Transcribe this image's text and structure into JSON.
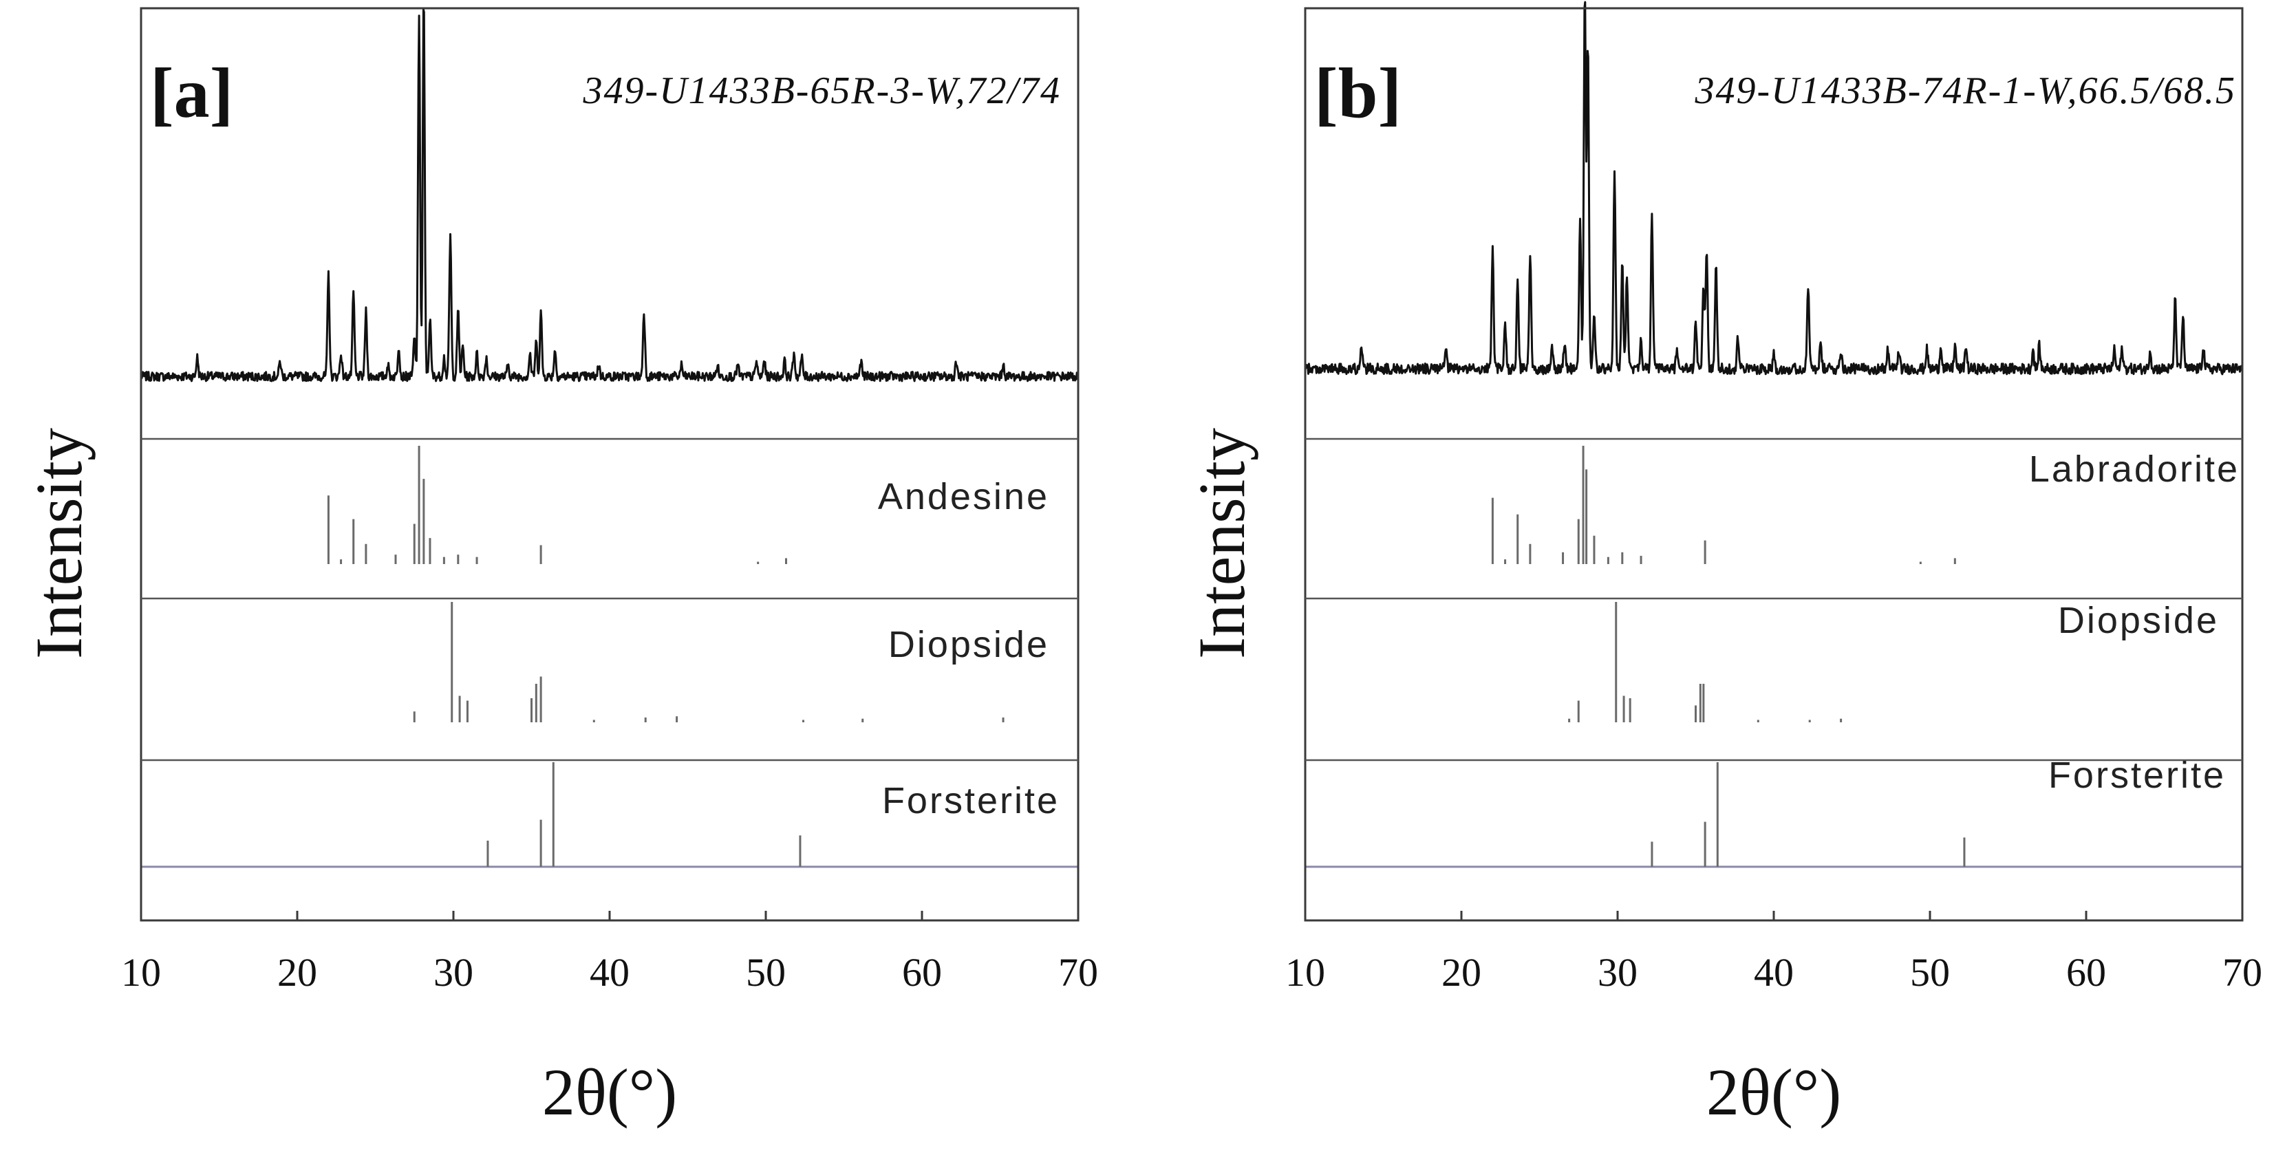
{
  "chart_data": [
    {
      "type": "line",
      "panel_label": "[a]",
      "sample_label": "349-U1433B-65R-3-W,72/74",
      "xlabel": "2θ(°)",
      "ylabel": "Intensity",
      "xlim": [
        10,
        70
      ],
      "x_ticks": [
        "10",
        "20",
        "30",
        "40",
        "50",
        "60",
        "70"
      ],
      "grid": false,
      "pattern": {
        "name": "XRD pattern",
        "baseline": 0.05,
        "noise": 0.012,
        "peaks": [
          [
            13.6,
            0.05
          ],
          [
            18.9,
            0.04
          ],
          [
            22.0,
            0.27
          ],
          [
            22.8,
            0.06
          ],
          [
            23.6,
            0.22
          ],
          [
            24.4,
            0.17
          ],
          [
            25.8,
            0.03
          ],
          [
            26.5,
            0.08
          ],
          [
            27.5,
            0.1
          ],
          [
            27.8,
            0.95
          ],
          [
            28.1,
            1.0
          ],
          [
            28.5,
            0.15
          ],
          [
            29.4,
            0.05
          ],
          [
            29.8,
            0.37
          ],
          [
            30.3,
            0.17
          ],
          [
            30.6,
            0.08
          ],
          [
            31.5,
            0.06
          ],
          [
            32.1,
            0.05
          ],
          [
            33.5,
            0.03
          ],
          [
            34.9,
            0.06
          ],
          [
            35.3,
            0.09
          ],
          [
            35.6,
            0.17
          ],
          [
            36.5,
            0.07
          ],
          [
            39.3,
            0.03
          ],
          [
            42.2,
            0.17
          ],
          [
            44.6,
            0.03
          ],
          [
            46.9,
            0.03
          ],
          [
            48.2,
            0.03
          ],
          [
            49.4,
            0.04
          ],
          [
            49.9,
            0.04
          ],
          [
            51.2,
            0.04
          ],
          [
            51.8,
            0.06
          ],
          [
            52.3,
            0.05
          ],
          [
            56.1,
            0.04
          ],
          [
            62.2,
            0.04
          ],
          [
            65.2,
            0.03
          ]
        ]
      },
      "references": [
        {
          "name": "Andesine",
          "sticks": [
            [
              22.0,
              0.58
            ],
            [
              22.8,
              0.04
            ],
            [
              23.6,
              0.38
            ],
            [
              24.4,
              0.17
            ],
            [
              26.3,
              0.08
            ],
            [
              27.5,
              0.34
            ],
            [
              27.8,
              1.0
            ],
            [
              28.1,
              0.72
            ],
            [
              28.5,
              0.22
            ],
            [
              29.4,
              0.06
            ],
            [
              30.3,
              0.08
            ],
            [
              31.5,
              0.06
            ],
            [
              35.6,
              0.16
            ],
            [
              49.5,
              0.02
            ],
            [
              51.3,
              0.05
            ]
          ]
        },
        {
          "name": "Diopside",
          "sticks": [
            [
              27.5,
              0.09
            ],
            [
              29.9,
              1.0
            ],
            [
              30.4,
              0.22
            ],
            [
              30.9,
              0.18
            ],
            [
              35.0,
              0.2
            ],
            [
              35.3,
              0.32
            ],
            [
              35.6,
              0.38
            ],
            [
              39.0,
              0.02
            ],
            [
              42.3,
              0.04
            ],
            [
              44.3,
              0.05
            ],
            [
              52.4,
              0.02
            ],
            [
              56.2,
              0.03
            ],
            [
              65.2,
              0.04
            ]
          ]
        },
        {
          "name": "Forsterite",
          "sticks": [
            [
              32.2,
              0.25
            ],
            [
              35.6,
              0.45
            ],
            [
              36.4,
              1.0
            ],
            [
              52.2,
              0.3
            ]
          ]
        }
      ]
    },
    {
      "type": "line",
      "panel_label": "[b]",
      "sample_label": "349-U1433B-74R-1-W,66.5/68.5",
      "xlabel": "2θ(°)",
      "ylabel": "Intensity",
      "xlim": [
        10,
        70
      ],
      "x_ticks": [
        "10",
        "20",
        "30",
        "40",
        "50",
        "60",
        "70"
      ],
      "grid": false,
      "pattern": {
        "name": "XRD pattern",
        "baseline": 0.07,
        "noise": 0.014,
        "peaks": [
          [
            13.6,
            0.05
          ],
          [
            19.0,
            0.05
          ],
          [
            22.0,
            0.32
          ],
          [
            22.8,
            0.12
          ],
          [
            23.6,
            0.22
          ],
          [
            24.4,
            0.3
          ],
          [
            25.8,
            0.06
          ],
          [
            26.6,
            0.07
          ],
          [
            27.6,
            0.4
          ],
          [
            27.9,
            1.0
          ],
          [
            28.1,
            0.85
          ],
          [
            28.5,
            0.14
          ],
          [
            29.8,
            0.52
          ],
          [
            30.3,
            0.28
          ],
          [
            30.6,
            0.25
          ],
          [
            31.5,
            0.08
          ],
          [
            32.2,
            0.4
          ],
          [
            33.8,
            0.05
          ],
          [
            35.0,
            0.12
          ],
          [
            35.5,
            0.22
          ],
          [
            35.7,
            0.3
          ],
          [
            36.3,
            0.27
          ],
          [
            37.7,
            0.08
          ],
          [
            40.0,
            0.04
          ],
          [
            42.2,
            0.22
          ],
          [
            43.0,
            0.06
          ],
          [
            44.3,
            0.05
          ],
          [
            47.3,
            0.05
          ],
          [
            48.0,
            0.05
          ],
          [
            49.8,
            0.05
          ],
          [
            50.7,
            0.06
          ],
          [
            51.6,
            0.06
          ],
          [
            52.3,
            0.06
          ],
          [
            56.6,
            0.05
          ],
          [
            57.0,
            0.06
          ],
          [
            61.8,
            0.05
          ],
          [
            62.3,
            0.05
          ],
          [
            64.1,
            0.05
          ],
          [
            65.7,
            0.18
          ],
          [
            66.2,
            0.14
          ],
          [
            67.5,
            0.06
          ]
        ]
      },
      "references": [
        {
          "name": "Labradorite",
          "sticks": [
            [
              22.0,
              0.56
            ],
            [
              22.8,
              0.04
            ],
            [
              23.6,
              0.42
            ],
            [
              24.4,
              0.17
            ],
            [
              26.5,
              0.1
            ],
            [
              27.5,
              0.38
            ],
            [
              27.8,
              1.0
            ],
            [
              28.0,
              0.8
            ],
            [
              28.5,
              0.24
            ],
            [
              29.4,
              0.06
            ],
            [
              30.3,
              0.1
            ],
            [
              31.5,
              0.07
            ],
            [
              35.6,
              0.2
            ],
            [
              49.4,
              0.02
            ],
            [
              51.6,
              0.05
            ]
          ]
        },
        {
          "name": "Diopside",
          "sticks": [
            [
              26.9,
              0.03
            ],
            [
              27.5,
              0.18
            ],
            [
              29.9,
              1.0
            ],
            [
              30.4,
              0.22
            ],
            [
              30.8,
              0.2
            ],
            [
              35.0,
              0.14
            ],
            [
              35.3,
              0.32
            ],
            [
              35.5,
              0.32
            ],
            [
              39.0,
              0.02
            ],
            [
              42.3,
              0.02
            ],
            [
              44.3,
              0.03
            ]
          ]
        },
        {
          "name": "Forsterite",
          "sticks": [
            [
              32.2,
              0.24
            ],
            [
              35.6,
              0.43
            ],
            [
              36.4,
              1.0
            ],
            [
              52.2,
              0.28
            ]
          ]
        }
      ]
    }
  ]
}
